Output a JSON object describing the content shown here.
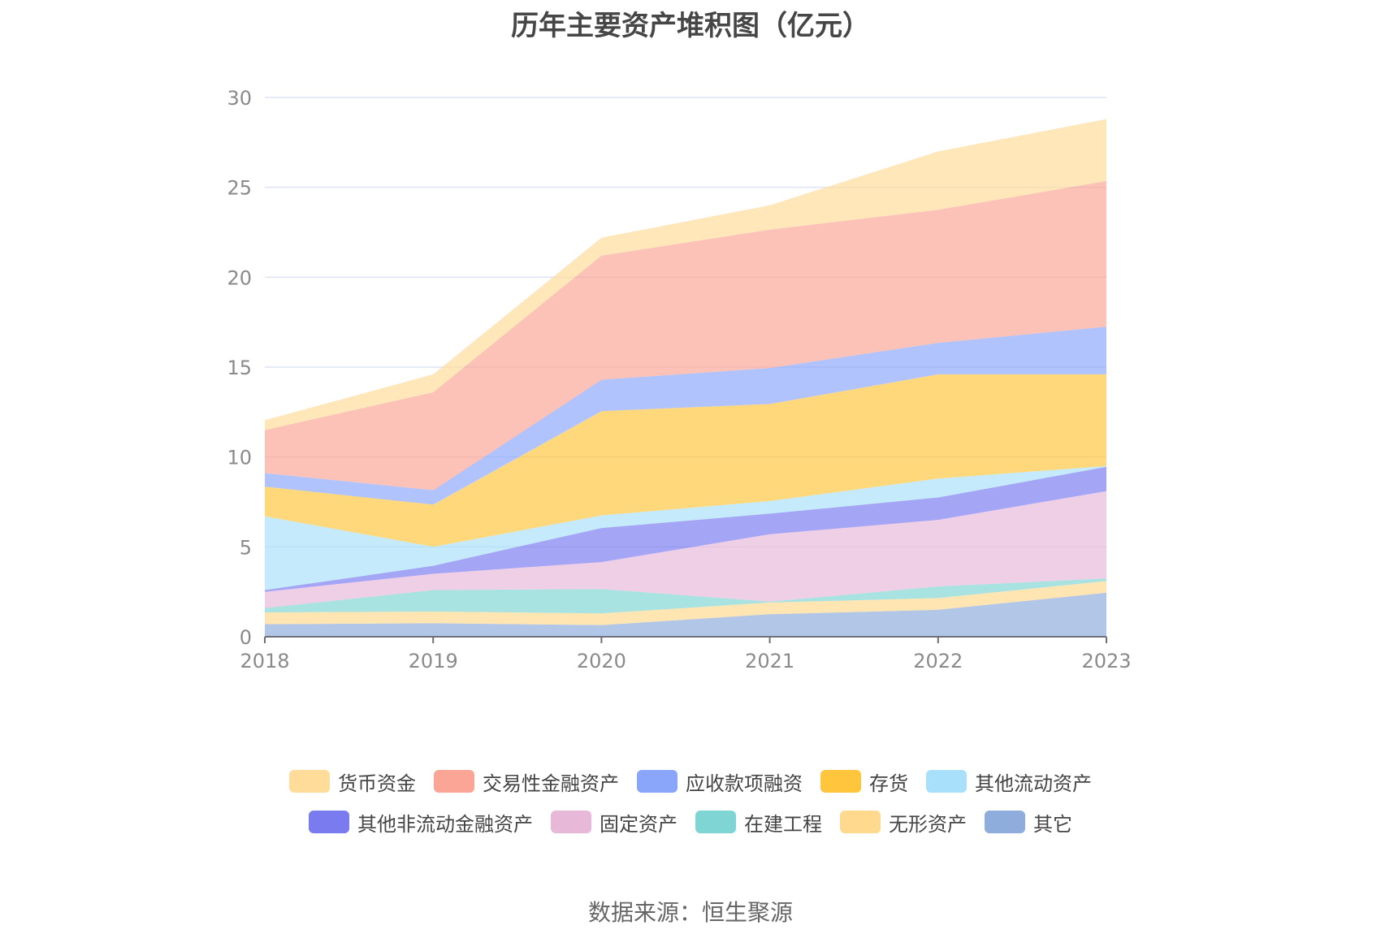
{
  "chart_data": {
    "type": "area",
    "stacked": true,
    "title": "历年主要资产堆积图（亿元）",
    "xlabel": "",
    "ylabel": "",
    "ylim": [
      0,
      30
    ],
    "yticks": [
      "0",
      "5",
      "10",
      "15",
      "20",
      "25",
      "30"
    ],
    "categories": [
      "2018",
      "2019",
      "2020",
      "2021",
      "2022",
      "2023"
    ],
    "grid": true,
    "legend_position": "bottom",
    "series": [
      {
        "name": "其它",
        "color": "#8eacdc",
        "values": [
          0.7,
          0.75,
          0.65,
          1.25,
          1.5,
          2.45
        ]
      },
      {
        "name": "无形资产",
        "color": "#ffd98e",
        "values": [
          0.65,
          0.65,
          0.65,
          0.65,
          0.65,
          0.65
        ]
      },
      {
        "name": "在建工程",
        "color": "#7fd5d3",
        "values": [
          0.25,
          1.2,
          1.35,
          0.05,
          0.65,
          0.15
        ]
      },
      {
        "name": "固定资产",
        "color": "#e8b8d8",
        "values": [
          0.9,
          0.9,
          1.5,
          3.75,
          3.7,
          4.85
        ]
      },
      {
        "name": "其他非流动金融资产",
        "color": "#7b7bf0",
        "values": [
          0.1,
          0.45,
          1.9,
          1.15,
          1.25,
          1.35
        ]
      },
      {
        "name": "其他流动资产",
        "color": "#a8e0fb",
        "values": [
          4.1,
          1.05,
          0.7,
          0.7,
          1.05,
          0.05
        ]
      },
      {
        "name": "存货",
        "color": "#ffc53d",
        "values": [
          1.65,
          2.35,
          5.8,
          5.4,
          5.8,
          5.1
        ]
      },
      {
        "name": "应收款项融资",
        "color": "#8aa6fb",
        "values": [
          0.75,
          0.8,
          1.75,
          2.0,
          1.75,
          2.65
        ]
      },
      {
        "name": "交易性金融资产",
        "color": "#fba597",
        "values": [
          2.4,
          5.45,
          6.9,
          7.7,
          7.4,
          8.1
        ]
      },
      {
        "name": "货币资金",
        "color": "#ffdc99",
        "values": [
          0.55,
          1.0,
          1.0,
          1.35,
          3.25,
          3.45
        ]
      }
    ],
    "legend_order": [
      [
        "货币资金",
        "交易性金融资产",
        "应收款项融资",
        "存货",
        "其他流动资产"
      ],
      [
        "其他非流动金融资产",
        "固定资产",
        "在建工程",
        "无形资产",
        "其它"
      ]
    ]
  },
  "source": "数据来源：恒生聚源"
}
